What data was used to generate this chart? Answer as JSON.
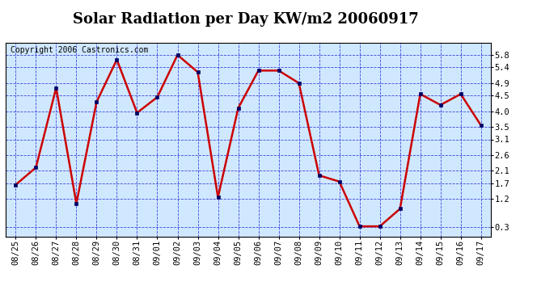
{
  "title": "Solar Radiation per Day KW/m2 20060917",
  "copyright_text": "Copyright 2006 Castronics.com",
  "labels": [
    "08/25",
    "08/26",
    "08/27",
    "08/28",
    "08/29",
    "08/30",
    "08/31",
    "09/01",
    "09/02",
    "09/03",
    "09/04",
    "09/05",
    "09/06",
    "09/07",
    "09/08",
    "09/09",
    "09/10",
    "09/11",
    "09/12",
    "09/13",
    "09/14",
    "09/15",
    "09/16",
    "09/17"
  ],
  "values": [
    1.65,
    2.2,
    4.75,
    1.05,
    4.3,
    5.65,
    3.95,
    4.45,
    5.8,
    5.25,
    1.25,
    4.1,
    5.3,
    5.3,
    4.9,
    1.95,
    1.75,
    0.32,
    0.32,
    0.88,
    4.55,
    4.2,
    4.55,
    3.55
  ],
  "ylim_min": 0.0,
  "ylim_max": 6.2,
  "yticks": [
    0.3,
    1.2,
    1.7,
    2.1,
    2.6,
    3.1,
    3.5,
    4.0,
    4.5,
    4.9,
    5.4,
    5.8
  ],
  "line_color": "#cc0000",
  "marker_color": "#000066",
  "plot_bg_color": "#d0e8ff",
  "grid_color": "#0000cc",
  "title_fontsize": 13,
  "tick_fontsize": 7.5,
  "copyright_fontsize": 7
}
